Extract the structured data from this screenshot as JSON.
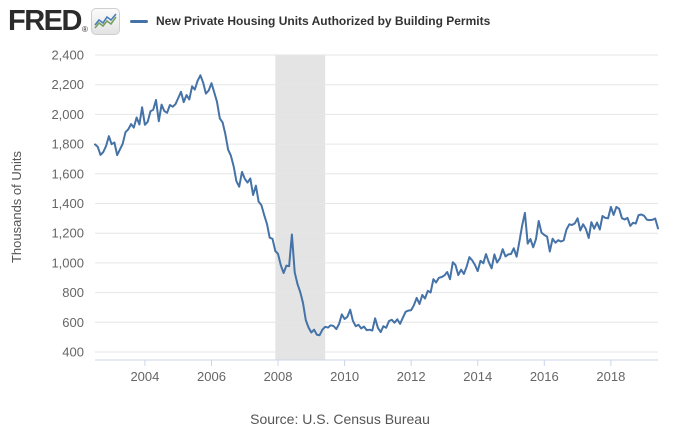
{
  "header": {
    "logo_text": "FRED",
    "registered_mark": "®",
    "legend_label": "New Private Housing Units Authorized by Building Permits"
  },
  "footer": {
    "source": "Source: U.S. Census Bureau"
  },
  "colors": {
    "line": "#4572a7",
    "recession_band": "#e4e4e4",
    "gridline": "#e6e6e6",
    "axis_line": "#ccd6eb",
    "tick_label": "#666666",
    "legend_text": "#333333",
    "logo_text": "#2b2b2b",
    "source_text": "#555555",
    "logo_spark_blue": "#4a7ebb",
    "logo_spark_green": "#76a15c"
  },
  "chart_data": {
    "type": "line",
    "title": "",
    "xlabel": "",
    "ylabel": "Thousands of Units",
    "ylim": [
      400,
      2400
    ],
    "grid": true,
    "legend_position": "top",
    "ytick_values": [
      400,
      600,
      800,
      1000,
      1200,
      1400,
      1600,
      1800,
      2000,
      2200,
      2400
    ],
    "ytick_labels": [
      "400",
      "600",
      "800",
      "1,000",
      "1,200",
      "1,400",
      "1,600",
      "1,800",
      "2,000",
      "2,200",
      "2,400"
    ],
    "xtick_years": [
      2004,
      2006,
      2008,
      2010,
      2012,
      2014,
      2016,
      2018
    ],
    "recession_band": {
      "start": "2007-12",
      "end": "2009-06"
    },
    "series": [
      {
        "name": "New Private Housing Units Authorized by Building Permits",
        "frequency": "monthly",
        "start": "2002-07",
        "end": "2019-06",
        "values": [
          1798,
          1781,
          1727,
          1747,
          1788,
          1853,
          1799,
          1811,
          1726,
          1765,
          1802,
          1880,
          1900,
          1935,
          1911,
          1979,
          1932,
          2048,
          1930,
          1950,
          2021,
          2031,
          2097,
          1954,
          2066,
          2023,
          2011,
          2063,
          2052,
          2068,
          2110,
          2152,
          2083,
          2130,
          2101,
          2189,
          2167,
          2226,
          2263,
          2213,
          2140,
          2161,
          2210,
          2147,
          2085,
          1973,
          1946,
          1869,
          1763,
          1722,
          1649,
          1550,
          1513,
          1613,
          1566,
          1541,
          1569,
          1457,
          1520,
          1413,
          1389,
          1322,
          1261,
          1170,
          1162,
          1080,
          1061,
          984,
          932,
          982,
          978,
          1191,
          937,
          857,
          805,
          730,
          615,
          564,
          531,
          550,
          516,
          513,
          550,
          570,
          564,
          580,
          575,
          554,
          589,
          653,
          622,
          637,
          685,
          610,
          574,
          583,
          559,
          571,
          547,
          550,
          544,
          627,
          563,
          534,
          574,
          563,
          609,
          617,
          597,
          620,
          589,
          630,
          671,
          679,
          682,
          715,
          764,
          723,
          784,
          760,
          812,
          801,
          890,
          868,
          900,
          905,
          915,
          939,
          890,
          1005,
          985,
          918,
          954,
          926,
          974,
          1039,
          1017,
          986,
          945,
          1014,
          997,
          1059,
          1005,
          963,
          1057,
          1003,
          1031,
          1092,
          1043,
          1057,
          1060,
          1098,
          1042,
          1140,
          1250,
          1337,
          1130,
          1161,
          1105,
          1161,
          1282,
          1204,
          1188,
          1177,
          1077,
          1163,
          1136,
          1153,
          1144,
          1152,
          1225,
          1260,
          1255,
          1266,
          1300,
          1219,
          1260,
          1228,
          1168,
          1275,
          1230,
          1272,
          1225,
          1316,
          1303,
          1300,
          1377,
          1323,
          1377,
          1364,
          1301,
          1292,
          1303,
          1249,
          1270,
          1265,
          1322,
          1326,
          1317,
          1291,
          1288,
          1290,
          1299,
          1232
        ]
      }
    ]
  }
}
